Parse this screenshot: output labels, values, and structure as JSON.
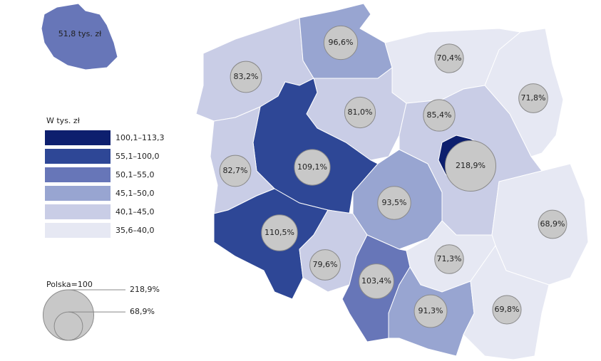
{
  "inset": {
    "label": "51,8 tys. zł"
  },
  "legend": {
    "title": "W tys. zł",
    "classes": [
      "100,1–113,3",
      "55,1–100,0",
      "50,1–55,0",
      "45,1–50,0",
      "40,1–45,0",
      "35,6–40,0"
    ]
  },
  "size_legend": {
    "title": "Polska=100",
    "items": [
      {
        "value": 218.9,
        "label": "218,9%"
      },
      {
        "value": 68.9,
        "label": "68,9%"
      }
    ]
  },
  "regions": [
    {
      "value": 96.6,
      "label": "96,6%"
    },
    {
      "value": 83.2,
      "label": "83,2%"
    },
    {
      "value": 70.4,
      "label": "70,4%"
    },
    {
      "value": 71.8,
      "label": "71,8%"
    },
    {
      "value": 81.0,
      "label": "81,0%"
    },
    {
      "value": 85.4,
      "label": "85,4%"
    },
    {
      "value": 218.9,
      "label": "218,9%"
    },
    {
      "value": 82.7,
      "label": "82,7%"
    },
    {
      "value": 109.1,
      "label": "109,1%"
    },
    {
      "value": 93.5,
      "label": "93,5%"
    },
    {
      "value": 68.9,
      "label": "68,9%"
    },
    {
      "value": 110.5,
      "label": "110,5%"
    },
    {
      "value": 79.6,
      "label": "79,6%"
    },
    {
      "value": 71.3,
      "label": "71,3%"
    },
    {
      "value": 103.4,
      "label": "103,4%"
    },
    {
      "value": 91.3,
      "label": "91,3%"
    },
    {
      "value": 69.8,
      "label": "69,8%"
    }
  ]
}
